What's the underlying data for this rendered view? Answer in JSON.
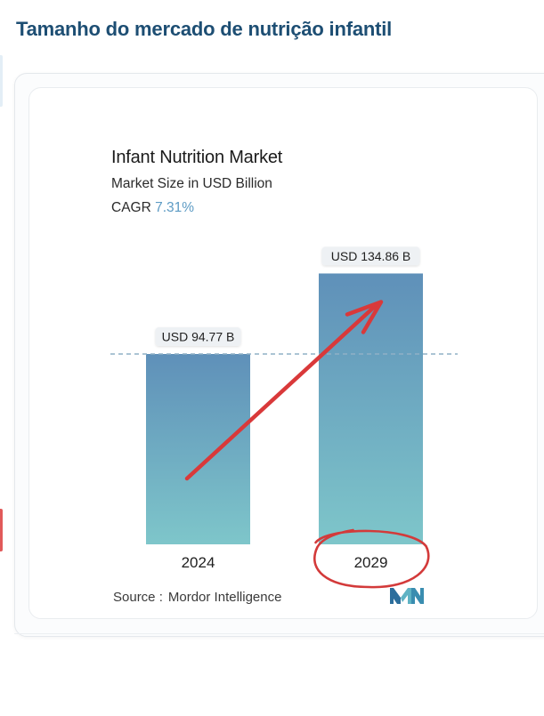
{
  "page": {
    "heading": "Tamanho do mercado de nutrição infantil"
  },
  "chart_data": {
    "type": "bar",
    "title": "Infant Nutrition Market",
    "subtitle": "Market Size in USD Billion",
    "cagr_label": "CAGR",
    "cagr_value": "7.31%",
    "categories": [
      "2024",
      "2029"
    ],
    "values": [
      94.77,
      134.86
    ],
    "data_labels": [
      "USD 94.77 B",
      "USD 134.86 B"
    ],
    "reference_line_value": 94.77,
    "highlighted_category": "2029",
    "trend_arrow": true,
    "source_label": "Source :",
    "source_value": "Mordor Intelligence",
    "colors": {
      "bar_top": "#5f90b9",
      "bar_bottom": "#7ec6ca",
      "arrow": "#d9393a",
      "annotation_circle": "#d33a3a",
      "reference_line": "#8fb0c6",
      "cagr_value": "#5d9bc4"
    }
  }
}
